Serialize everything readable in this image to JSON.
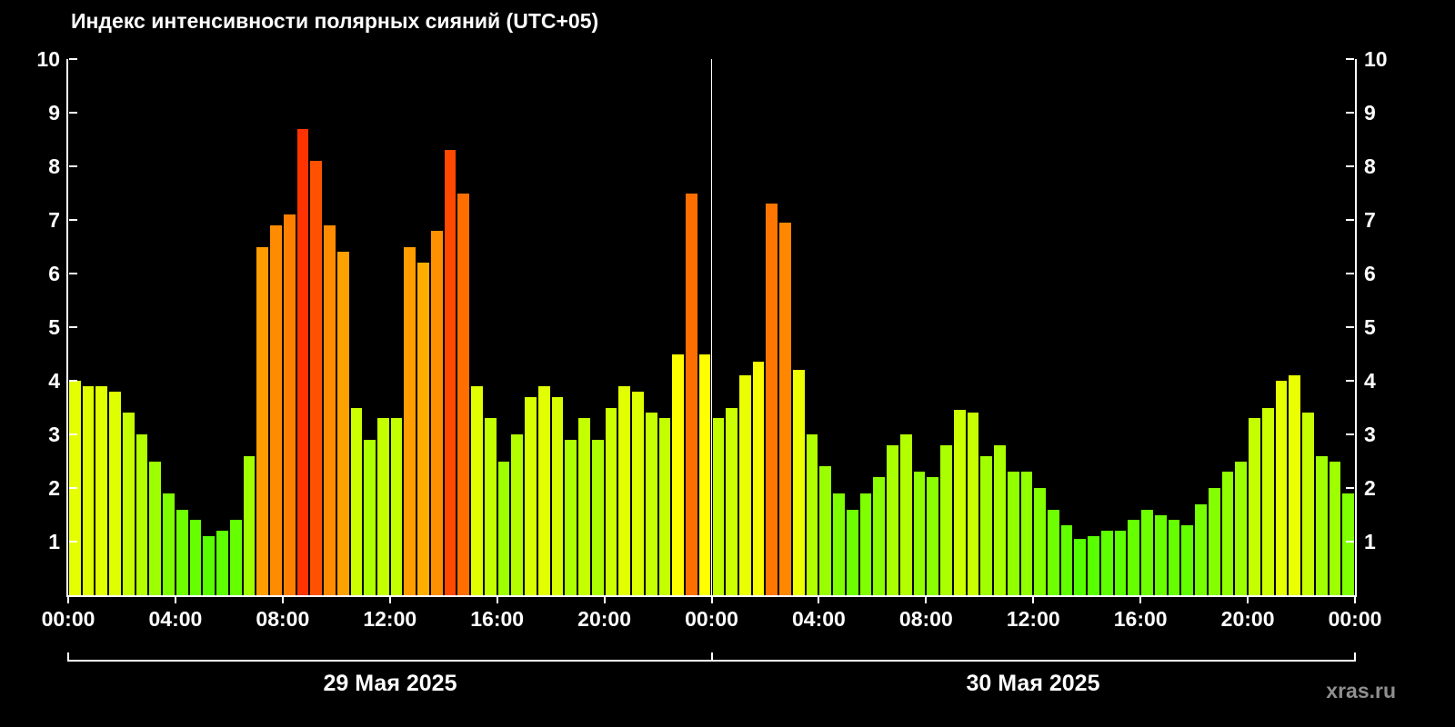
{
  "watermark": "xras.ru",
  "colors": {
    "background": "#000000",
    "text": "#ffffff",
    "axis": "#ffffff",
    "watermark": "#8f8f8f",
    "bar_low_green": "#55ff00",
    "bar_mid_yellow": "#ffee00",
    "bar_high_orange": "#ff8800",
    "bar_peak_red": "#ff4400"
  },
  "chart_data": {
    "type": "bar",
    "title": "Индекс интенсивности полярных сияний (UTC+05)",
    "xlabel": "",
    "ylabel": "",
    "ylim": [
      0,
      10
    ],
    "y_ticks": [
      1,
      2,
      3,
      4,
      5,
      6,
      7,
      8,
      9,
      10
    ],
    "y_ticks_both_sides": true,
    "x_span_hours": 48,
    "interval_minutes": 30,
    "x_tick_hours": [
      0,
      4,
      8,
      12,
      16,
      20,
      24,
      28,
      32,
      36,
      40,
      44,
      48
    ],
    "x_tick_labels": [
      "00:00",
      "04:00",
      "08:00",
      "12:00",
      "16:00",
      "20:00",
      "00:00",
      "04:00",
      "08:00",
      "12:00",
      "16:00",
      "20:00",
      "00:00"
    ],
    "grid": false,
    "legend": false,
    "color_rule": "bar color by value: green (low) -> yellow-green -> yellow -> orange -> red-orange (high)",
    "days": [
      {
        "label": "29 Мая 2025",
        "values": [
          4.0,
          3.9,
          3.9,
          3.8,
          3.4,
          3.0,
          2.5,
          1.9,
          1.6,
          1.4,
          1.1,
          1.2,
          1.4,
          2.6,
          6.5,
          6.9,
          7.1,
          8.7,
          8.1,
          6.9,
          6.4,
          3.5,
          2.9,
          3.3,
          3.3,
          6.5,
          6.2,
          6.8,
          8.3,
          7.5,
          3.9,
          3.3,
          2.5,
          3.0,
          3.7,
          3.9,
          3.7,
          2.9,
          3.3,
          2.9,
          3.5,
          3.9,
          3.8,
          3.4,
          3.3,
          4.5,
          7.5,
          4.5
        ]
      },
      {
        "label": "30 Мая 2025",
        "values": [
          3.3,
          3.5,
          4.1,
          4.35,
          7.3,
          6.95,
          4.2,
          3.0,
          2.4,
          1.9,
          1.6,
          1.9,
          2.2,
          2.8,
          3.0,
          2.3,
          2.2,
          2.8,
          3.45,
          3.4,
          2.6,
          2.8,
          2.3,
          2.3,
          2.0,
          1.6,
          1.3,
          1.05,
          1.1,
          1.2,
          1.2,
          1.4,
          1.6,
          1.5,
          1.4,
          1.3,
          1.7,
          2.0,
          2.3,
          2.5,
          3.3,
          3.5,
          4.0,
          4.1,
          3.4,
          2.6,
          2.5,
          1.9
        ]
      }
    ]
  }
}
